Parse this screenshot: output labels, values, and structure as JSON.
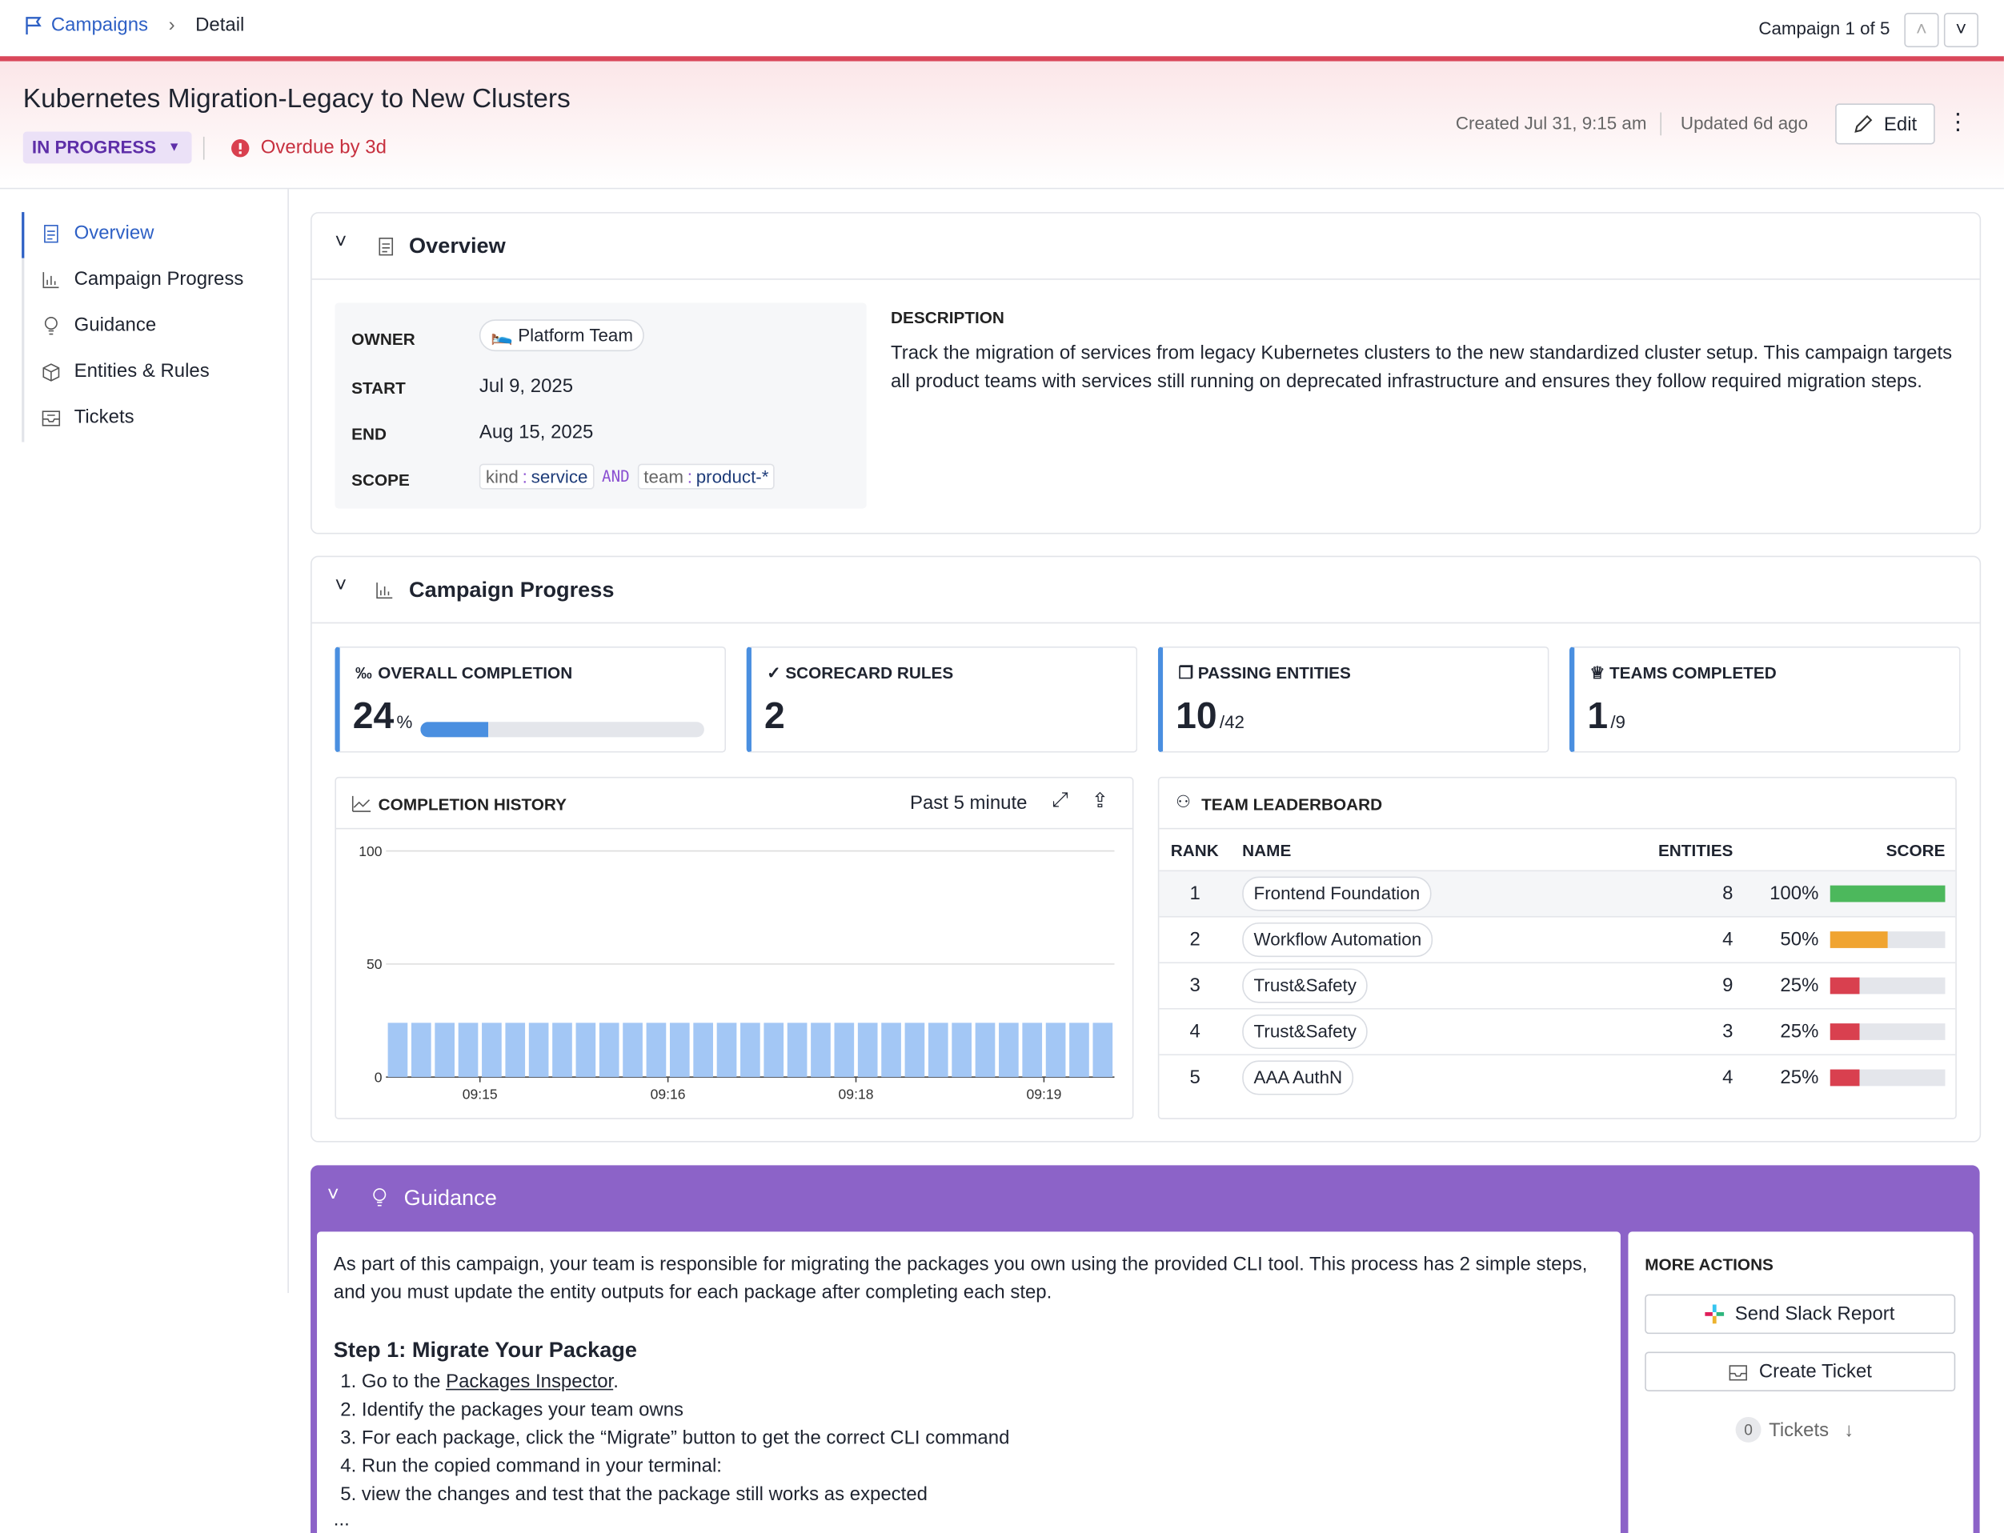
{
  "breadcrumb": {
    "parent": "Campaigns",
    "current": "Detail"
  },
  "pager": "Campaign 1 of 5",
  "header": {
    "title": "Kubernetes Migration-Legacy to New Clusters",
    "status": "IN PROGRESS",
    "overdue": "Overdue by 3d",
    "created": "Created Jul 31, 9:15 am",
    "updated": "Updated 6d ago",
    "edit": "Edit"
  },
  "nav": [
    "Overview",
    "Campaign Progress",
    "Guidance",
    "Entities & Rules",
    "Tickets"
  ],
  "overview": {
    "heading": "Overview",
    "fields": [
      {
        "label": "OWNER",
        "value": "Platform Team"
      },
      {
        "label": "START",
        "value": "Jul 9, 2025"
      },
      {
        "label": "END",
        "value": "Aug 15, 2025"
      }
    ],
    "scope": {
      "label": "SCOPE",
      "terms": [
        {
          "key": "kind",
          "sep": ":",
          "value": "service"
        },
        {
          "key": "team",
          "sep": ":",
          "value": "product-*"
        }
      ],
      "operator": "AND"
    },
    "description_label": "DESCRIPTION",
    "description": "Track the migration of services from legacy Kubernetes clusters to the new standardized cluster setup. This campaign targets all product teams with services still running on deprecated infrastructure and ensures they follow required migration steps."
  },
  "progress": {
    "heading": "Campaign Progress",
    "stats": [
      {
        "label": "OVERALL COMPLETION",
        "value": 24,
        "unit": "%"
      },
      {
        "label": "SCORECARD RULES",
        "value": 2
      },
      {
        "label": "PASSING ENTITIES",
        "value": 10,
        "suffix": "/42"
      },
      {
        "label": "TEAMS COMPLETED",
        "value": 1,
        "suffix": "/9"
      }
    ],
    "history_range": "Past 5 minute",
    "leaderboard": {
      "title": "TEAM LEADERBOARD",
      "columns": [
        "RANK",
        "NAME",
        "ENTITIES",
        "SCORE"
      ],
      "rows": [
        {
          "rank": 1,
          "name": "Frontend Foundation",
          "entities": 8,
          "score": 100,
          "score_label": "100%",
          "color": "#4cb85c"
        },
        {
          "rank": 2,
          "name": "Workflow Automation",
          "entities": 4,
          "score": 50,
          "score_label": "50%",
          "color": "#f0a431"
        },
        {
          "rank": 3,
          "name": "Trust&Safety",
          "entities": 9,
          "score": 25,
          "score_label": "25%",
          "color": "#d9404f"
        },
        {
          "rank": 4,
          "name": "Trust&Safety",
          "entities": 3,
          "score": 25,
          "score_label": "25%",
          "color": "#d9404f"
        },
        {
          "rank": 5,
          "name": "AAA AuthN",
          "entities": 4,
          "score": 25,
          "score_label": "25%",
          "color": "#d9404f"
        }
      ]
    }
  },
  "chart_data": {
    "type": "bar",
    "title": "COMPLETION HISTORY",
    "categories": [
      null,
      null,
      null,
      "09:15",
      null,
      null,
      null,
      null,
      null,
      null,
      null,
      "09:16",
      null,
      null,
      null,
      null,
      null,
      null,
      null,
      "09:18",
      null,
      null,
      null,
      null,
      null,
      null,
      null,
      "09:19",
      null,
      null,
      null
    ],
    "values": [
      24,
      24,
      24,
      24,
      24,
      24,
      24,
      24,
      24,
      24,
      24,
      24,
      24,
      24,
      24,
      24,
      24,
      24,
      24,
      24,
      24,
      24,
      24,
      24,
      24,
      24,
      24,
      24,
      24,
      24,
      24
    ],
    "color": "#a3c7f5",
    "ylim": [
      0,
      100
    ],
    "yticks": [
      0,
      50,
      100
    ],
    "grid": true
  },
  "guidance": {
    "heading": "Guidance",
    "intro": "As part of this campaign, your team is responsible for migrating the packages you own using the provided CLI tool. This process has 2 simple steps, and you must update the entity outputs for each package after completing each step.",
    "step1_title": "Step 1: Migrate Your Package",
    "step1_first": {
      "before": "Go to the ",
      "link": "Packages Inspector",
      "after": "."
    },
    "steps": [
      "Identify the packages your team owns",
      "For each package, click the “Migrate” button to get the correct CLI command",
      "Run the copied command in your terminal:",
      "view the changes and test that the package still works as expected"
    ],
    "more": "...",
    "actions_label": "MORE ACTIONS",
    "actions": [
      "Send Slack Report",
      "Create Ticket"
    ],
    "tickets_count": 0,
    "tickets_label": "Tickets"
  }
}
